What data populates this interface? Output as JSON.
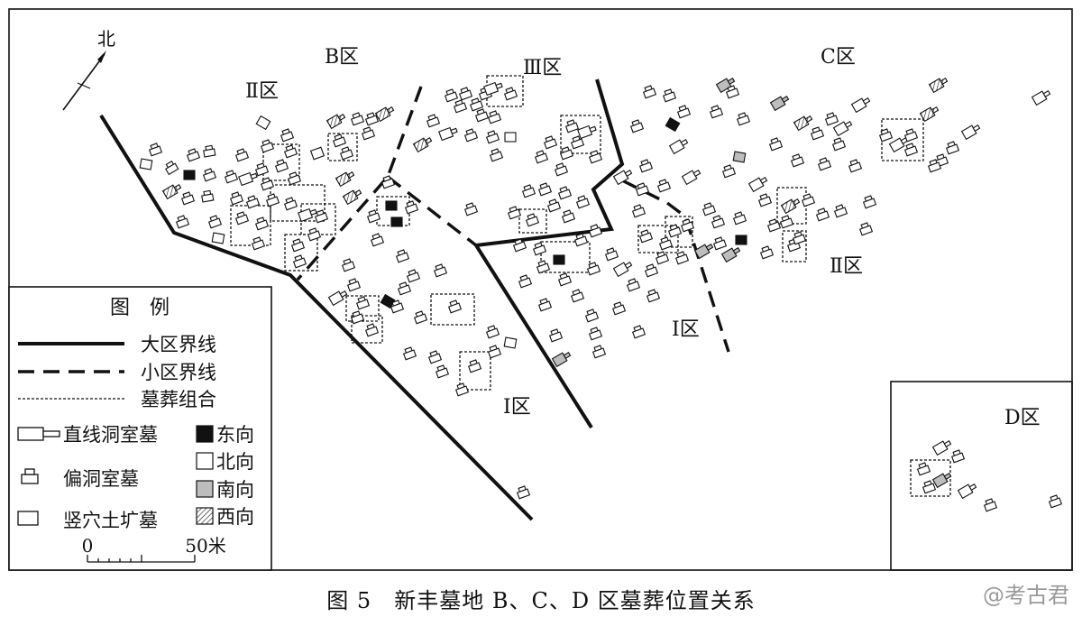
{
  "north_label": "北",
  "zones": {
    "B": "B区",
    "C": "C区",
    "D": "D区",
    "B_II": "Ⅱ区",
    "B_III": "Ⅲ区",
    "B_I": "Ⅰ区",
    "C_I": "Ⅰ区",
    "C_II": "Ⅱ区"
  },
  "legend": {
    "title": "图　例",
    "lines": {
      "major": "大区界线",
      "minor": "小区界线",
      "group": "墓葬组合"
    },
    "tomb_types": {
      "straight": "直线洞室墓",
      "side": "偏洞室墓",
      "pit": "竖穴土圹墓"
    },
    "orientations": {
      "east": "东向",
      "north": "北向",
      "south": "南向",
      "west": "西向"
    },
    "orientation_fills": {
      "east": "#111111",
      "north": "#ffffff",
      "south": "#bdbdbd",
      "west": "hatch"
    },
    "scale": {
      "zero": "0",
      "max": "50米"
    }
  },
  "caption": "图 5　新丰墓地 B、C、D 区墓葬位置关系",
  "watermark": "@考古君"
}
